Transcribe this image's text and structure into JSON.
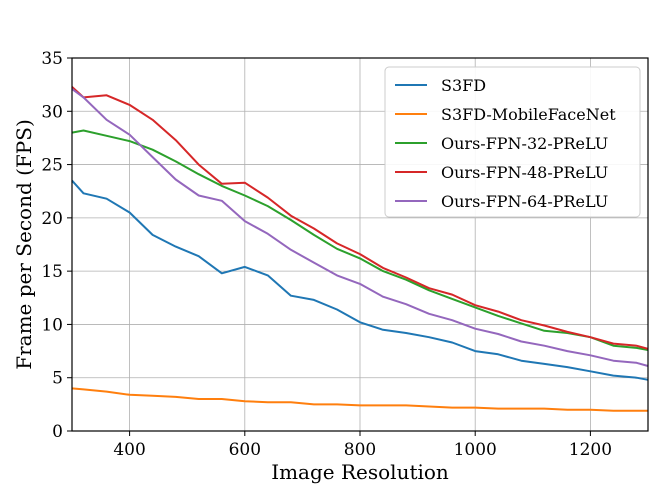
{
  "chart_data": {
    "type": "line",
    "title": "",
    "xlabel": "Image Resolution",
    "ylabel": "Frame per Second (FPS)",
    "xlim": [
      300,
      1300
    ],
    "ylim": [
      0,
      35
    ],
    "xticks": [
      400,
      600,
      800,
      1000,
      1200
    ],
    "yticks": [
      0,
      5,
      10,
      15,
      20,
      25,
      30,
      35
    ],
    "grid": true,
    "legend": "top-right",
    "x": [
      300,
      320,
      360,
      400,
      440,
      480,
      520,
      560,
      600,
      640,
      680,
      720,
      760,
      800,
      840,
      880,
      920,
      960,
      1000,
      1040,
      1080,
      1120,
      1160,
      1200,
      1240,
      1280,
      1300
    ],
    "series": [
      {
        "name": "S3FD",
        "color": "#1f77b4",
        "values": [
          23.5,
          22.3,
          21.8,
          20.5,
          18.4,
          17.3,
          16.4,
          14.8,
          15.4,
          14.6,
          12.7,
          12.3,
          11.4,
          10.2,
          9.5,
          9.2,
          8.8,
          8.3,
          7.5,
          7.2,
          6.6,
          6.3,
          6.0,
          5.6,
          5.2,
          5.0,
          4.8
        ]
      },
      {
        "name": "S3FD-MobileFaceNet",
        "color": "#ff7f0e",
        "values": [
          4.0,
          3.9,
          3.7,
          3.4,
          3.3,
          3.2,
          3.0,
          3.0,
          2.8,
          2.7,
          2.7,
          2.5,
          2.5,
          2.4,
          2.4,
          2.4,
          2.3,
          2.2,
          2.2,
          2.1,
          2.1,
          2.1,
          2.0,
          2.0,
          1.9,
          1.9,
          1.9
        ]
      },
      {
        "name": "Ours-FPN-32-PReLU",
        "color": "#2ca02c",
        "values": [
          28.0,
          28.2,
          27.7,
          27.2,
          26.4,
          25.3,
          24.1,
          23.0,
          22.1,
          21.1,
          19.8,
          18.4,
          17.1,
          16.2,
          15.0,
          14.2,
          13.2,
          12.4,
          11.6,
          10.8,
          10.1,
          9.4,
          9.2,
          8.8,
          8.0,
          7.8,
          7.6
        ]
      },
      {
        "name": "Ours-FPN-48-PReLU",
        "color": "#d62728",
        "values": [
          32.3,
          31.3,
          31.5,
          30.6,
          29.2,
          27.3,
          25.0,
          23.2,
          23.3,
          21.9,
          20.2,
          19.0,
          17.6,
          16.6,
          15.3,
          14.4,
          13.4,
          12.8,
          11.8,
          11.2,
          10.4,
          9.9,
          9.3,
          8.8,
          8.2,
          8.0,
          7.7
        ]
      },
      {
        "name": "Ours-FPN-64-PReLU",
        "color": "#9467bd",
        "values": [
          32.1,
          31.3,
          29.2,
          27.8,
          25.7,
          23.6,
          22.1,
          21.6,
          19.7,
          18.5,
          17.0,
          15.8,
          14.6,
          13.8,
          12.6,
          11.9,
          11.0,
          10.4,
          9.6,
          9.1,
          8.4,
          8.0,
          7.5,
          7.1,
          6.6,
          6.4,
          6.1
        ]
      }
    ]
  }
}
